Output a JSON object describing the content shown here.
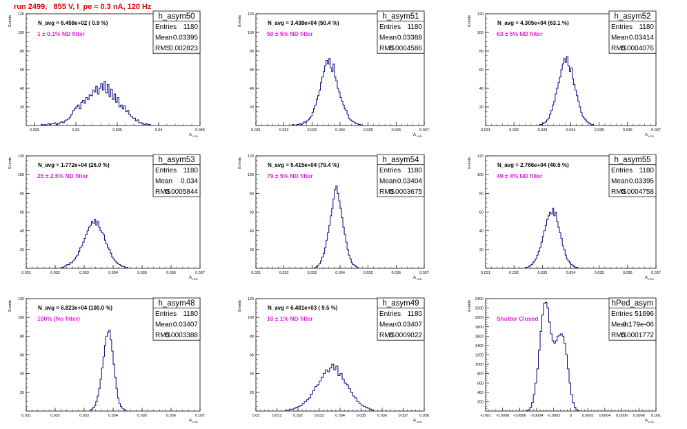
{
  "header": {
    "title": "run 2499,   855 V, I_pe ≈ 0.3 nA, 120 Hz"
  },
  "common": {
    "ylabel": "Events",
    "xlabel": "A",
    "xlabel_sub": "LED",
    "stats_labels": [
      "Entries",
      "Mean",
      "RMS"
    ]
  },
  "colors": {
    "title": "#e00000",
    "annotation": "#e020e0",
    "histogram": "#000080",
    "axis": "#000000"
  },
  "chart_data": [
    {
      "type": "histogram",
      "name": "h_asym50",
      "stats": {
        "entries": "1180",
        "mean": "0.03395",
        "rms": "0.002823"
      },
      "navg": "N_avg = 6.458e+02 ( 0.9 %)",
      "filter": "1 ± 0.1% ND filter",
      "xlim": [
        0.024,
        0.045
      ],
      "ylim": [
        0,
        120
      ],
      "xticks": [
        "0.025",
        "0.03",
        "0.035",
        "0.04",
        "0.045"
      ],
      "xtick_values": [
        0.025,
        0.03,
        0.035,
        0.04,
        0.045
      ],
      "yticks": [
        "20",
        "40",
        "60",
        "80",
        "100",
        "120"
      ],
      "ytick_values": [
        20,
        40,
        60,
        80,
        100,
        120
      ],
      "bin_start": 0.0258,
      "bin_width": 0.0002,
      "values": [
        1,
        0,
        1,
        0,
        2,
        1,
        2,
        2,
        3,
        1,
        2,
        3,
        4,
        3,
        5,
        6,
        7,
        9,
        12,
        16,
        18,
        20,
        22,
        18,
        25,
        27,
        24,
        30,
        28,
        33,
        32,
        38,
        36,
        42,
        34,
        40,
        45,
        38,
        47,
        35,
        44,
        31,
        39,
        28,
        34,
        25,
        30,
        20,
        22,
        18,
        21,
        15,
        16,
        12,
        10,
        8,
        8,
        5,
        6,
        3,
        3,
        2,
        1,
        2,
        1,
        1
      ]
    },
    {
      "type": "histogram",
      "name": "h_asym51",
      "stats": {
        "entries": "1180",
        "mean": "0.03388",
        "rms": "0.0004586"
      },
      "navg": "N_avg = 3.438e+04 (50.4 %)",
      "filter": "50 ± 5% ND filter",
      "xlim": [
        0.031,
        0.037
      ],
      "ylim": [
        0,
        120
      ],
      "xticks": [
        "0.031",
        "0.032",
        "0.033",
        "0.034",
        "0.035",
        "0.036",
        "0.037"
      ],
      "xtick_values": [
        0.031,
        0.032,
        0.033,
        0.034,
        0.035,
        0.036,
        0.037
      ],
      "yticks": [
        "20",
        "40",
        "60",
        "80",
        "100",
        "120"
      ],
      "ytick_values": [
        20,
        40,
        60,
        80,
        100,
        120
      ],
      "bin_start": 0.0323,
      "bin_width": 5e-05,
      "values": [
        1,
        0,
        0,
        1,
        1,
        2,
        1,
        2,
        4,
        3,
        5,
        6,
        8,
        10,
        14,
        18,
        22,
        28,
        32,
        38,
        46,
        52,
        58,
        64,
        70,
        66,
        72,
        62,
        58,
        66,
        52,
        48,
        40,
        36,
        30,
        26,
        22,
        18,
        16,
        12,
        8,
        6,
        5,
        4,
        3,
        2,
        2,
        1,
        1
      ]
    },
    {
      "type": "histogram",
      "name": "h_asym52",
      "stats": {
        "entries": "1180",
        "mean": "0.03414",
        "rms": "0.0004076"
      },
      "navg": "N_avg = 4.305e+04 (63.1 %)",
      "filter": "63 ± 5% ND filter",
      "xlim": [
        0.031,
        0.037
      ],
      "ylim": [
        0,
        120
      ],
      "xticks": [
        "0.031",
        "0.032",
        "0.033",
        "0.034",
        "0.035",
        "0.036",
        "0.037"
      ],
      "xtick_values": [
        0.031,
        0.032,
        0.033,
        0.034,
        0.035,
        0.036,
        0.037
      ],
      "yticks": [
        "20",
        "40",
        "60",
        "80",
        "100",
        "120"
      ],
      "ytick_values": [
        20,
        40,
        60,
        80,
        100,
        120
      ],
      "bin_start": 0.0329,
      "bin_width": 5e-05,
      "values": [
        1,
        1,
        2,
        3,
        4,
        6,
        8,
        12,
        16,
        22,
        26,
        34,
        40,
        46,
        52,
        60,
        66,
        72,
        68,
        74,
        64,
        58,
        62,
        50,
        44,
        38,
        32,
        26,
        20,
        14,
        10,
        8,
        6,
        4,
        3,
        2,
        1,
        1
      ]
    },
    {
      "type": "histogram",
      "name": "h_asym53",
      "stats": {
        "entries": "1180",
        "mean": "0.034",
        "rms": "0.0005844"
      },
      "navg": "N_avg = 1.772e+04 (26.0 %)",
      "filter": "25 ± 2.5% ND filter",
      "xlim": [
        0.031,
        0.037
      ],
      "ylim": [
        0,
        120
      ],
      "xticks": [
        "0.031",
        "0.032",
        "0.033",
        "0.034",
        "0.035",
        "0.036",
        "0.037"
      ],
      "xtick_values": [
        0.031,
        0.032,
        0.033,
        0.034,
        0.035,
        0.036,
        0.037
      ],
      "yticks": [
        "20",
        "40",
        "60",
        "80",
        "100",
        "120"
      ],
      "ytick_values": [
        20,
        40,
        60,
        80,
        100,
        120
      ],
      "bin_start": 0.0322,
      "bin_width": 5e-05,
      "values": [
        1,
        1,
        2,
        3,
        4,
        4,
        6,
        6,
        8,
        10,
        12,
        14,
        18,
        22,
        24,
        28,
        32,
        36,
        40,
        44,
        46,
        50,
        48,
        52,
        46,
        50,
        44,
        40,
        38,
        36,
        30,
        26,
        22,
        20,
        16,
        12,
        10,
        8,
        6,
        5,
        4,
        3,
        2,
        2,
        1,
        1
      ]
    },
    {
      "type": "histogram",
      "name": "h_asym54",
      "stats": {
        "entries": "1180",
        "mean": "0.03404",
        "rms": "0.0003675"
      },
      "navg": "N_avg = 5.415e+04 (79.4 %)",
      "filter": "79 ± 5% ND filter",
      "xlim": [
        0.031,
        0.037
      ],
      "ylim": [
        0,
        120
      ],
      "xticks": [
        "0.031",
        "0.032",
        "0.033",
        "0.034",
        "0.035",
        "0.036",
        "0.037"
      ],
      "xtick_values": [
        0.031,
        0.032,
        0.033,
        0.034,
        0.035,
        0.036,
        0.037
      ],
      "yticks": [
        "20",
        "40",
        "60",
        "80",
        "100",
        "120"
      ],
      "ytick_values": [
        20,
        40,
        60,
        80,
        100,
        120
      ],
      "bin_start": 0.0331,
      "bin_width": 5e-05,
      "values": [
        1,
        2,
        3,
        5,
        8,
        12,
        16,
        22,
        30,
        38,
        46,
        56,
        64,
        74,
        84,
        88,
        80,
        72,
        64,
        54,
        44,
        36,
        28,
        20,
        14,
        10,
        6,
        4,
        3,
        2,
        1
      ]
    },
    {
      "type": "histogram",
      "name": "h_asym55",
      "stats": {
        "entries": "1180",
        "mean": "0.03395",
        "rms": "0.0004758"
      },
      "navg": "N_avg = 2.766e+04 (40.5 %)",
      "filter": "40 ± 4% ND filter",
      "xlim": [
        0.031,
        0.037
      ],
      "ylim": [
        0,
        120
      ],
      "xticks": [
        "0.031",
        "0.032",
        "0.033",
        "0.034",
        "0.035",
        "0.036",
        "0.037"
      ],
      "xtick_values": [
        0.031,
        0.032,
        0.033,
        0.034,
        0.035,
        0.036,
        0.037
      ],
      "yticks": [
        "20",
        "40",
        "60",
        "80",
        "100",
        "120"
      ],
      "ytick_values": [
        20,
        40,
        60,
        80,
        100,
        120
      ],
      "bin_start": 0.0324,
      "bin_width": 5e-05,
      "values": [
        1,
        1,
        2,
        3,
        4,
        6,
        8,
        10,
        14,
        18,
        22,
        28,
        34,
        40,
        46,
        52,
        56,
        60,
        58,
        64,
        56,
        60,
        50,
        44,
        38,
        32,
        24,
        20,
        14,
        10,
        8,
        6,
        4,
        3,
        2,
        1,
        1
      ]
    },
    {
      "type": "histogram",
      "name": "h_asym48",
      "stats": {
        "entries": "1180",
        "mean": "0.03407",
        "rms": "0.0003388"
      },
      "navg": "N_avg = 6.823e+04 (100.0 %)",
      "filter": "100% (No filter)",
      "xlim": [
        0.031,
        0.037
      ],
      "ylim": [
        0,
        120
      ],
      "xticks": [
        "0.031",
        "0.032",
        "0.033",
        "0.034",
        "0.035",
        "0.036",
        "0.037"
      ],
      "xtick_values": [
        0.031,
        0.032,
        0.033,
        0.034,
        0.035,
        0.036,
        0.037
      ],
      "yticks": [
        "20",
        "40",
        "60",
        "80",
        "100",
        "120"
      ],
      "ytick_values": [
        20,
        40,
        60,
        80,
        100,
        120
      ],
      "bin_start": 0.0332,
      "bin_width": 5e-05,
      "values": [
        1,
        2,
        4,
        6,
        10,
        16,
        24,
        34,
        46,
        58,
        70,
        80,
        84,
        86,
        76,
        64,
        50,
        36,
        24,
        14,
        8,
        5,
        3,
        2,
        1
      ]
    },
    {
      "type": "histogram",
      "name": "h_asym49",
      "stats": {
        "entries": "1180",
        "mean": "0.03407",
        "rms": "0.0009022"
      },
      "navg": "N_avg = 6.481e+03 ( 9.5 %)",
      "filter": "10 ± 1% ND filter",
      "xlim": [
        0.03,
        0.038
      ],
      "ylim": [
        0,
        120
      ],
      "xticks": [
        "0.03",
        "0.031",
        "0.032",
        "0.033",
        "0.034",
        "0.035",
        "0.036",
        "0.037",
        "0.038"
      ],
      "xtick_values": [
        0.03,
        0.031,
        0.032,
        0.033,
        0.034,
        0.035,
        0.036,
        0.037,
        0.038
      ],
      "yticks": [
        "20",
        "40",
        "60",
        "80",
        "100",
        "120"
      ],
      "ytick_values": [
        20,
        40,
        60,
        80,
        100,
        120
      ],
      "bin_start": 0.0314,
      "bin_width": 0.0001,
      "values": [
        1,
        1,
        2,
        2,
        3,
        4,
        5,
        6,
        8,
        10,
        12,
        14,
        18,
        22,
        26,
        28,
        32,
        36,
        40,
        44,
        42,
        46,
        50,
        44,
        48,
        38,
        40,
        34,
        30,
        28,
        24,
        20,
        16,
        14,
        10,
        8,
        6,
        5,
        4,
        3,
        2,
        1
      ]
    },
    {
      "type": "histogram",
      "name": "hPed_asym",
      "stats": {
        "entries": "51696",
        "mean": "3.179e-06",
        "rms": "0.0001772"
      },
      "navg": "",
      "filter": "Shutter Closed",
      "xlim": [
        -0.001,
        0.001
      ],
      "ylim": [
        0,
        2400
      ],
      "xticks": [
        "-0.001",
        "-0.0008",
        "-0.0006",
        "-0.0004",
        "-0.0002",
        "0",
        "0.0002",
        "0.0004",
        "0.0006",
        "0.0008",
        "0.001"
      ],
      "xtick_values": [
        -0.001,
        -0.0008,
        -0.0006,
        -0.0004,
        -0.0002,
        0,
        0.0002,
        0.0004,
        0.0006,
        0.0008,
        0.001
      ],
      "yticks": [
        "200",
        "400",
        "600",
        "800",
        "1000",
        "1200",
        "1400",
        "1600",
        "1800",
        "2000",
        "2200",
        "2400"
      ],
      "ytick_values": [
        200,
        400,
        600,
        800,
        1000,
        1200,
        1400,
        1600,
        1800,
        2000,
        2200,
        2400
      ],
      "bin_start": -0.00052,
      "bin_width": 2e-05,
      "values": [
        10,
        30,
        80,
        180,
        350,
        600,
        900,
        1300,
        1700,
        2050,
        2300,
        2320,
        2200,
        1900,
        1650,
        1500,
        1450,
        1500,
        1600,
        1620,
        1650,
        1600,
        1450,
        1200,
        900,
        600,
        350,
        180,
        80,
        30,
        10
      ]
    }
  ]
}
